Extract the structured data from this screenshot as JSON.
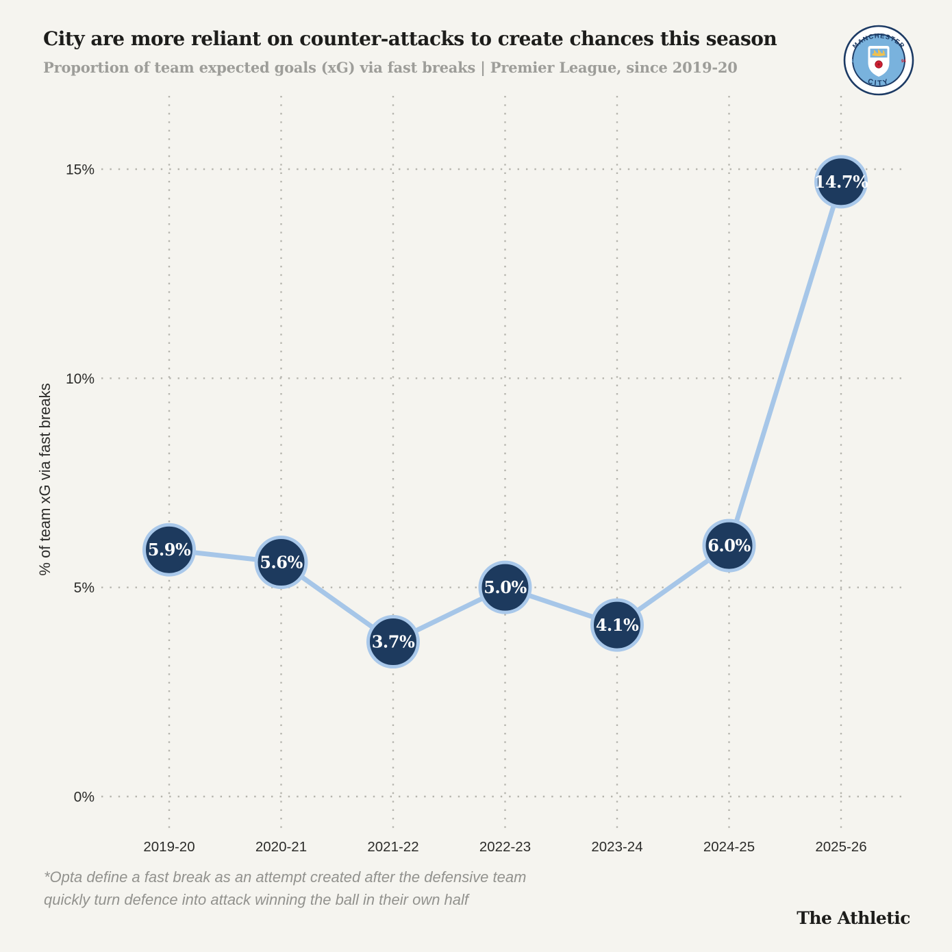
{
  "header": {
    "title": "City are more reliant on counter-attacks to create chances this season",
    "subtitle": "Proportion of team expected goals (xG) via fast breaks | Premier League, since 2019-20"
  },
  "badge": {
    "top_text": "MANCHESTER",
    "bottom_text": "CITY",
    "left_text": "18",
    "right_text": "94",
    "colors": {
      "sky": "#79b2dd",
      "navy": "#1c3a64",
      "gold": "#f2c14e",
      "red": "#cf2033",
      "white": "#ffffff"
    }
  },
  "chart_data": {
    "type": "line",
    "categories": [
      "2019-20",
      "2020-21",
      "2021-22",
      "2022-23",
      "2023-24",
      "2024-25",
      "2025-26"
    ],
    "values": [
      5.9,
      5.6,
      3.7,
      5.0,
      4.1,
      6.0,
      14.7
    ],
    "point_labels": [
      "5.9%",
      "5.6%",
      "3.7%",
      "5.0%",
      "4.1%",
      "6.0%",
      "14.7%"
    ],
    "title": "City are more reliant on counter-attacks to create chances this season",
    "xlabel": "",
    "ylabel": "% of team xG via fast breaks",
    "yticks": [
      0,
      5,
      10,
      15
    ],
    "ytick_labels": [
      "0%",
      "5%",
      "10%",
      "15%"
    ],
    "ylim": [
      0,
      16.8
    ],
    "grid": "dotted horizontal and vertical gridlines",
    "legend": "none",
    "colors": {
      "background": "#f5f4ef",
      "line": "#a6c6e8",
      "point_fill": "#1d3a5e",
      "point_stroke": "#a9c8ea",
      "point_label": "#ffffff",
      "grid": "#b5b4ad",
      "tick": "#2b2b29"
    }
  },
  "footnote": {
    "text": "*Opta define a fast break as an attempt created after the defensive team\n quickly turn defence into attack winning the ball in their own half"
  },
  "branding": {
    "source": "The Athletic"
  }
}
